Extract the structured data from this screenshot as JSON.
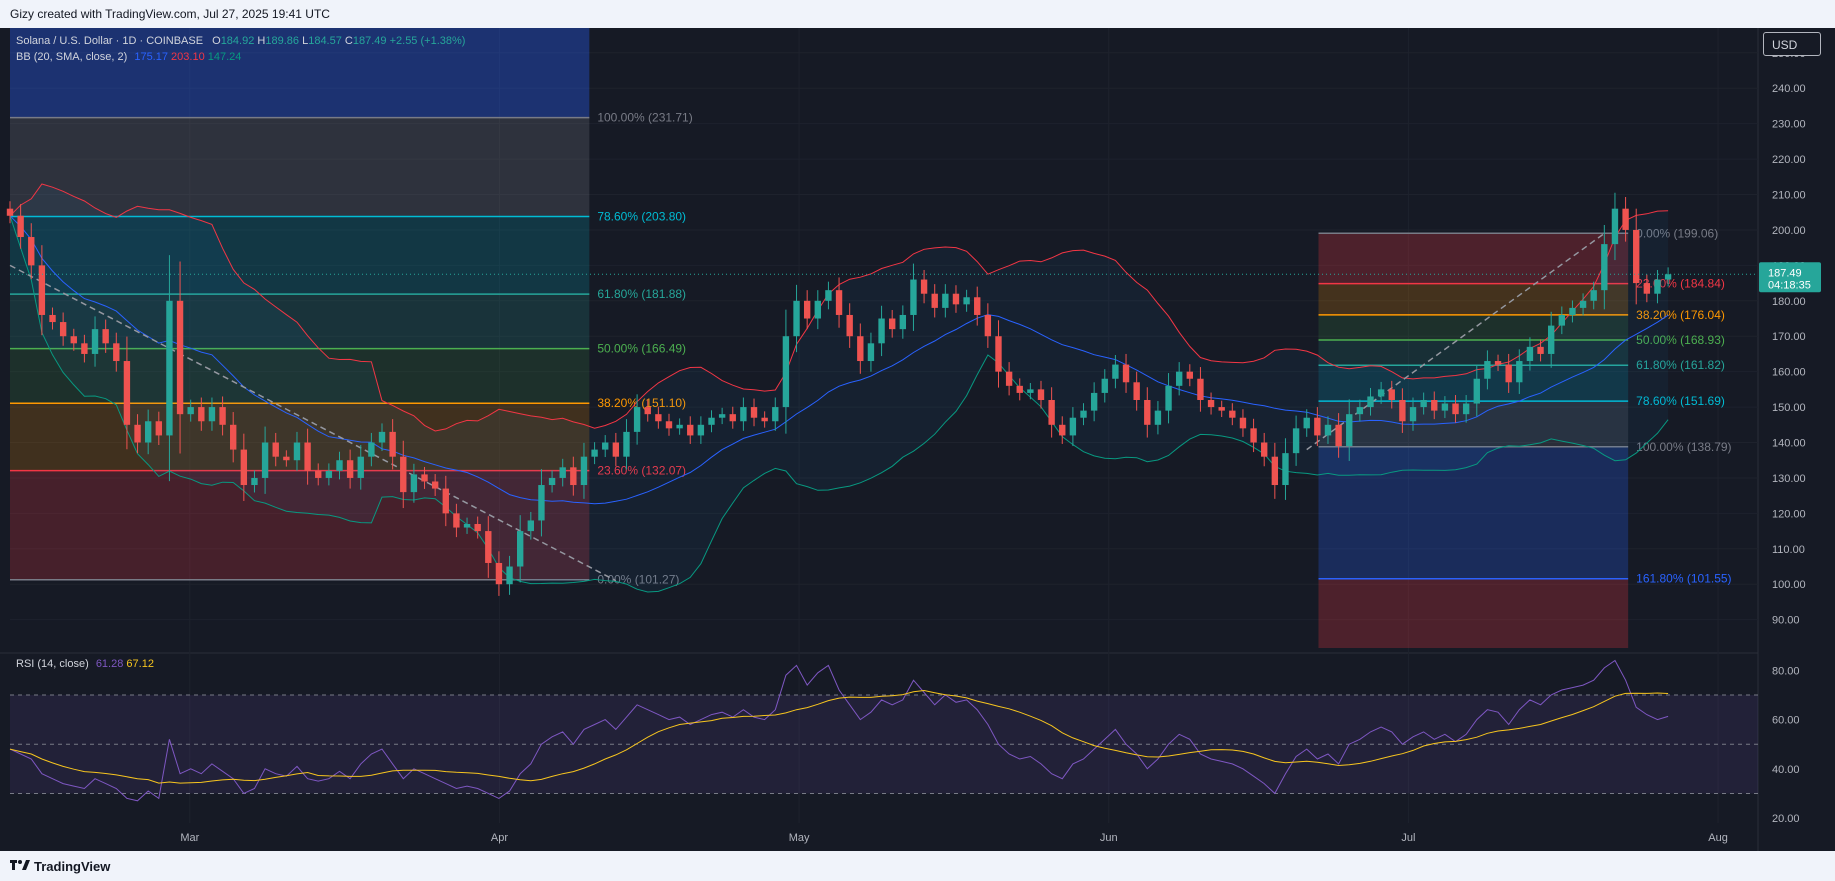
{
  "header": {
    "credit": "Gizy created with TradingView.com, Jul 27, 2025 19:41 UTC"
  },
  "footer": {
    "brand": "TradingView"
  },
  "currency_button": "USD",
  "legend": {
    "symbol": "Solana / U.S. Dollar · 1D · COINBASE",
    "o_label": "O",
    "o": "184.92",
    "h_label": "H",
    "h": "189.86",
    "l_label": "L",
    "l": "184.57",
    "c_label": "C",
    "c": "187.49",
    "change": "+2.55 (+1.38%)",
    "bb_label": "BB (20, SMA, close, 2)",
    "bb_mid": "175.17",
    "bb_upper": "203.10",
    "bb_lower": "147.24",
    "rsi_label": "RSI (14, close)",
    "rsi": "61.28",
    "rsi_ma": "67.12"
  },
  "price_tag": {
    "value": "187.49",
    "countdown": "04:18:35"
  },
  "colors": {
    "up": "#26a69a",
    "down": "#ef5350",
    "bb_mid": "#2962ff",
    "bb_upper": "#f23645",
    "bb_lower": "#089981",
    "rsi": "#7e57c2",
    "rsi_ma": "#f7c51f"
  },
  "chart_data": [
    {
      "type": "candlestick",
      "title": "Solana / U.S. Dollar · 1D · COINBASE",
      "y_ticks": [
        90,
        100,
        110,
        120,
        130,
        140,
        150,
        160,
        170,
        180,
        190,
        200,
        210,
        220,
        230,
        240,
        250
      ],
      "x_ticks": [
        "Mar",
        "Apr",
        "May",
        "Jun",
        "Jul",
        "Aug"
      ],
      "x_range": [
        "2025-02-11",
        "2025-08-05"
      ],
      "y_range": [
        82,
        257
      ],
      "closes": [
        204,
        198,
        190,
        176,
        174,
        170,
        168,
        165,
        172,
        168,
        163,
        145,
        140,
        146,
        142,
        180,
        148,
        150,
        146,
        150,
        145,
        138,
        128,
        130,
        140,
        136,
        135,
        140,
        132,
        130,
        132,
        135,
        130,
        136,
        140,
        143,
        136,
        126,
        131,
        129,
        127,
        120,
        116,
        117,
        115,
        106,
        100,
        105,
        115,
        118,
        128,
        130,
        133,
        128,
        136,
        138,
        140,
        136,
        143,
        150,
        148,
        146,
        144,
        145,
        142,
        145,
        147,
        148,
        146,
        150,
        147,
        146,
        150,
        170,
        180,
        175,
        180,
        183,
        176,
        170,
        163,
        168,
        175,
        172,
        176,
        186,
        182,
        178,
        182,
        179,
        181,
        176,
        170,
        160,
        156,
        154,
        155,
        152,
        145,
        142,
        147,
        149,
        154,
        158,
        162,
        157,
        152,
        145,
        149,
        156,
        160,
        158,
        152,
        150,
        149,
        147,
        144,
        140,
        136,
        128,
        137,
        144,
        147,
        142,
        145,
        139,
        148,
        150,
        153,
        155,
        152,
        146,
        150,
        152,
        149,
        151,
        148,
        151,
        158,
        163,
        162,
        157,
        163,
        167,
        165,
        173,
        176,
        178,
        180,
        183,
        196,
        206,
        200,
        185,
        182,
        186,
        187.49
      ],
      "fibonacci_left": {
        "range": [
          "2025-02-11",
          "2025-04-10"
        ],
        "levels": [
          {
            "label": "100.00% (231.71)",
            "price": 231.71
          },
          {
            "label": "78.60% (203.80)",
            "price": 203.8
          },
          {
            "label": "61.80% (181.88)",
            "price": 181.88
          },
          {
            "label": "50.00% (166.49)",
            "price": 166.49
          },
          {
            "label": "38.20% (151.10)",
            "price": 151.1
          },
          {
            "label": "23.60% (132.07)",
            "price": 132.07
          },
          {
            "label": "0.00% (101.27)",
            "price": 101.27
          }
        ]
      },
      "fibonacci_right": {
        "range": [
          "2025-06-22",
          "2025-07-23"
        ],
        "levels": [
          {
            "label": "0.00% (199.06)",
            "price": 199.06
          },
          {
            "label": "23.60% (184.84)",
            "price": 184.84
          },
          {
            "label": "38.20% (176.04)",
            "price": 176.04
          },
          {
            "label": "50.00% (168.93)",
            "price": 168.93
          },
          {
            "label": "61.80% (161.82)",
            "price": 161.82
          },
          {
            "label": "78.60% (151.69)",
            "price": 151.69
          },
          {
            "label": "100.00% (138.79)",
            "price": 138.79
          },
          {
            "label": "161.80% (101.55)",
            "price": 101.55
          }
        ]
      }
    },
    {
      "type": "line",
      "title": "RSI (14, close)",
      "y_ticks": [
        20,
        40,
        60,
        80
      ],
      "y_range": [
        18,
        85
      ],
      "overbought": 70,
      "middle": 50,
      "oversold": 30,
      "series": [
        {
          "name": "RSI",
          "values": [
            48,
            46,
            44,
            38,
            36,
            34,
            33,
            32,
            36,
            34,
            32,
            28,
            27,
            31,
            28,
            52,
            38,
            40,
            38,
            42,
            39,
            36,
            30,
            32,
            40,
            38,
            37,
            41,
            36,
            35,
            36,
            39,
            36,
            42,
            46,
            48,
            42,
            36,
            40,
            38,
            36,
            34,
            32,
            33,
            32,
            30,
            28,
            31,
            38,
            42,
            50,
            53,
            55,
            50,
            56,
            58,
            60,
            56,
            61,
            66,
            64,
            62,
            60,
            61,
            58,
            60,
            62,
            63,
            61,
            64,
            61,
            60,
            64,
            78,
            82,
            74,
            79,
            82,
            72,
            66,
            60,
            63,
            68,
            66,
            68,
            76,
            71,
            66,
            70,
            67,
            68,
            64,
            58,
            50,
            46,
            44,
            45,
            42,
            38,
            36,
            42,
            44,
            48,
            52,
            56,
            50,
            46,
            40,
            44,
            50,
            54,
            52,
            46,
            44,
            43,
            42,
            40,
            37,
            34,
            30,
            38,
            45,
            48,
            44,
            46,
            42,
            50,
            52,
            55,
            57,
            55,
            50,
            53,
            55,
            52,
            54,
            51,
            54,
            60,
            64,
            63,
            58,
            64,
            68,
            66,
            70,
            72,
            73,
            74,
            76,
            81,
            84,
            76,
            65,
            62,
            60,
            61.28
          ]
        }
      ]
    }
  ]
}
